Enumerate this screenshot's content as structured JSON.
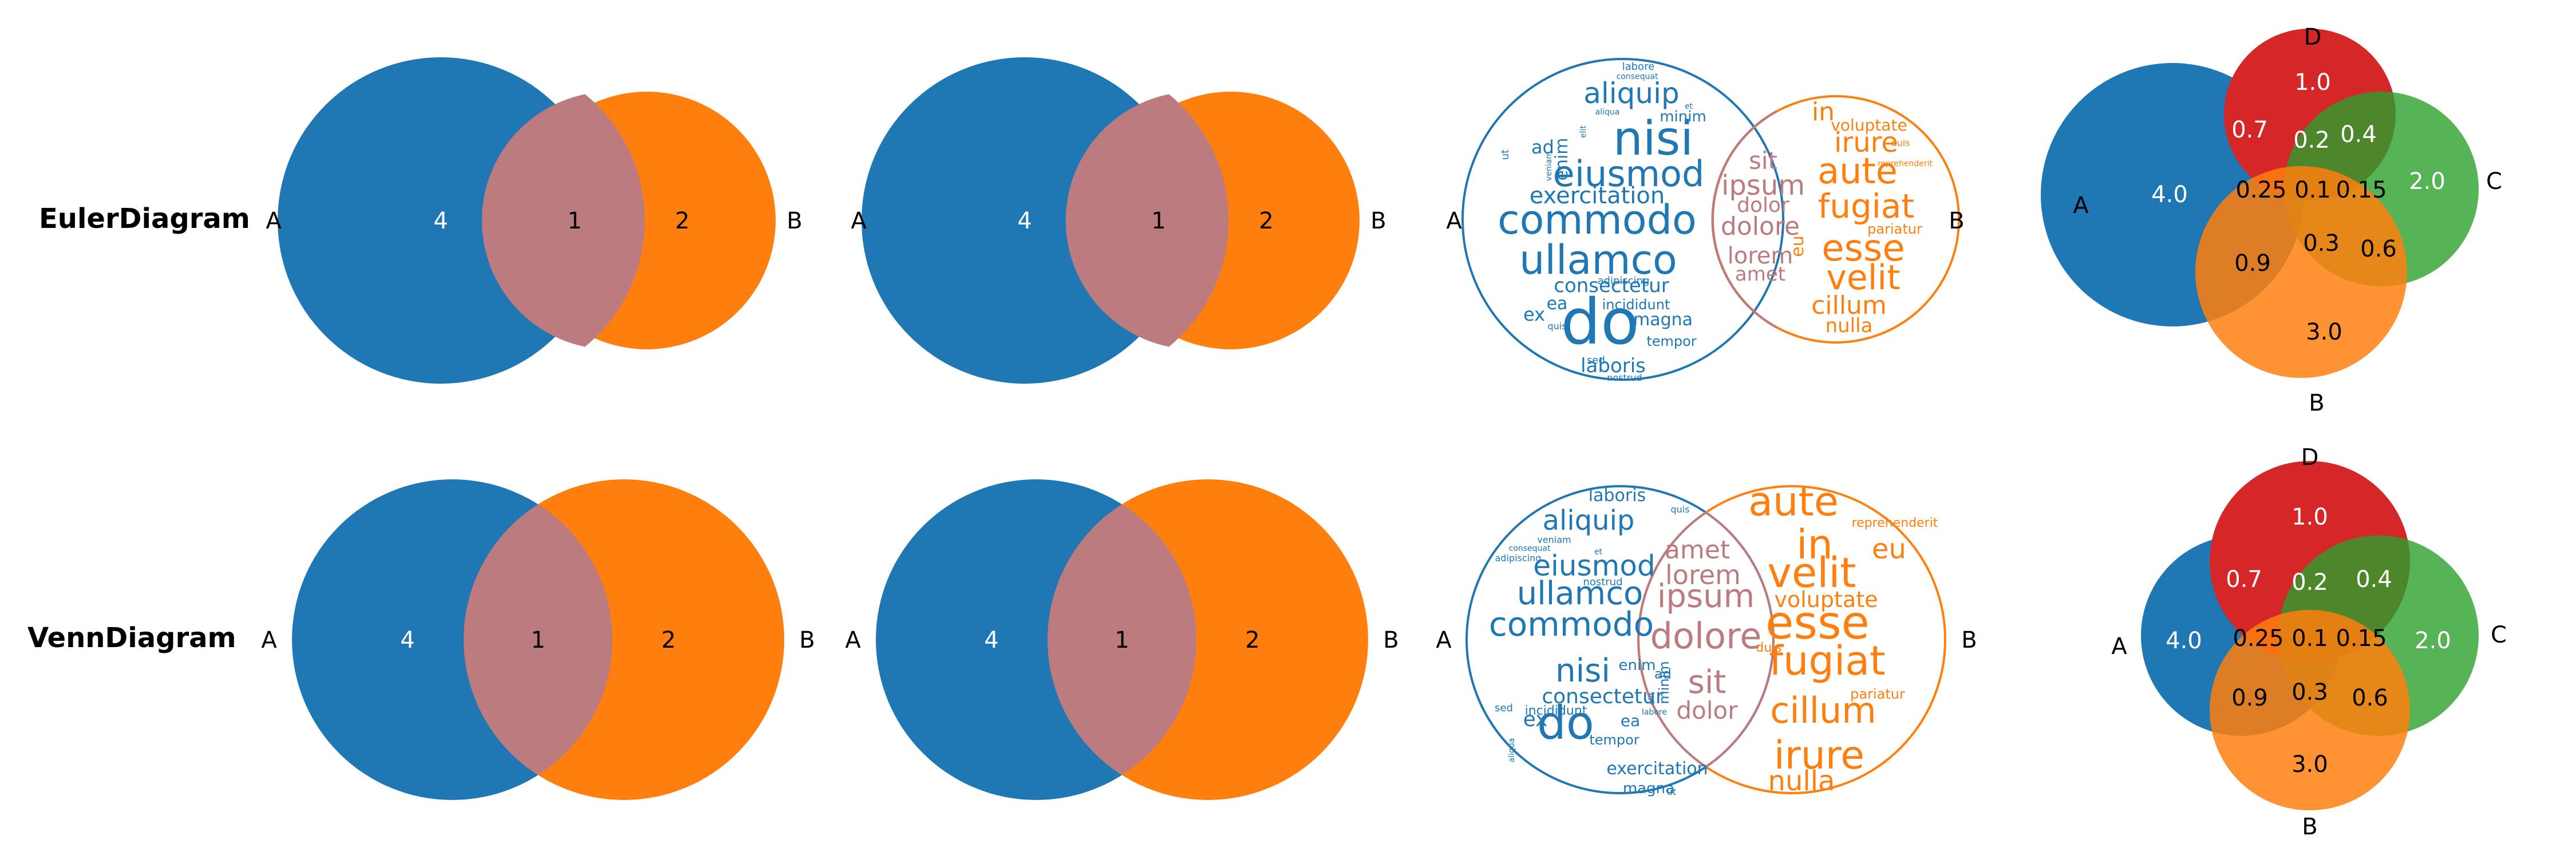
{
  "colors": {
    "blue": "#1f77b4",
    "orange": "#ff7f0e",
    "green": "#2ca02c",
    "red": "#d62728",
    "overlap": "#bb7b7f",
    "triple": "#b2882f"
  },
  "rows": [
    {
      "label": "EulerDiagram"
    },
    {
      "label": "VennDiagram"
    }
  ],
  "set_labels": {
    "a": "A",
    "b": "B",
    "c": "C",
    "d": "D"
  },
  "two_set": {
    "only_a": "4",
    "ab": "1",
    "only_b": "2"
  },
  "four_set": {
    "a": "4.0",
    "b": "3.0",
    "c": "2.0",
    "d": "1.0",
    "ad": "0.7",
    "ab": "0.9",
    "cd": "0.4",
    "bc": "0.6",
    "acd": "0.2",
    "abd": "0.25",
    "abcd": "0.1",
    "bcd": "0.15",
    "abc": "0.3"
  },
  "words": {
    "blue": [
      "do",
      "nisi",
      "commodo",
      "ullamco",
      "eiusmod",
      "aliquip",
      "exercitation",
      "consectetur",
      "laboris",
      "magna",
      "incididunt",
      "tempor",
      "enim",
      "minim",
      "ex",
      "ea",
      "ad",
      "sed",
      "quis",
      "adipiscing",
      "nostrud",
      "veniam",
      "ut",
      "aliqua",
      "elit",
      "labore",
      "consequat",
      "et"
    ],
    "shared": [
      "ipsum",
      "dolore",
      "lorem",
      "sit",
      "dolor",
      "amet"
    ],
    "orange": [
      "esse",
      "aute",
      "fugiat",
      "velit",
      "irure",
      "in",
      "cillum",
      "nulla",
      "voluptate",
      "eu",
      "pariatur",
      "duis",
      "reprehenderit"
    ]
  }
}
